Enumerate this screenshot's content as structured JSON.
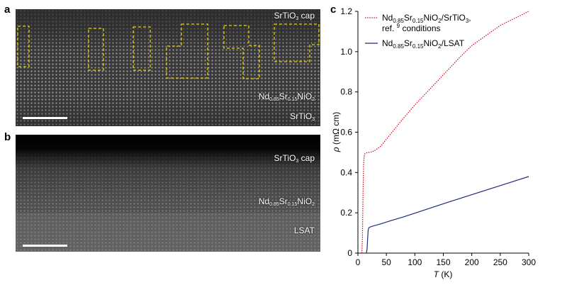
{
  "panels": {
    "a": {
      "letter": "a",
      "cap_label": {
        "main": "SrTiO",
        "sub": "3",
        "tail": " cap"
      },
      "film_label": {
        "p1": "Nd",
        "s1": "0.85",
        "p2": "Sr",
        "s2": "0.15",
        "p3": "NiO",
        "s3": "2"
      },
      "substrate_label": {
        "main": "SrTiO",
        "sub": "3"
      }
    },
    "b": {
      "letter": "b",
      "cap_label": {
        "main": "SrTiO",
        "sub": "3",
        "tail": " cap"
      },
      "film_label": {
        "p1": "Nd",
        "s1": "0.85",
        "p2": "Sr",
        "s2": "0.15",
        "p3": "NiO",
        "s3": "2"
      },
      "substrate_label": {
        "main": "LSAT"
      }
    },
    "c": {
      "letter": "c"
    }
  },
  "colors": {
    "red_series": "#d0021b",
    "blue_series": "#1f2a7a",
    "highlight_box": "#e6d200"
  },
  "chart_data": {
    "type": "line",
    "xlabel": {
      "symbol": "T",
      "unit": " (K)"
    },
    "ylabel": {
      "symbol": "ρ",
      "unit": " (mΩ cm)"
    },
    "xlim": [
      0,
      300
    ],
    "ylim": [
      0,
      1.2
    ],
    "xticks": [
      0,
      50,
      100,
      150,
      200,
      250,
      300
    ],
    "yticks": [
      0,
      0.2,
      0.4,
      0.6,
      0.8,
      1.0,
      1.2
    ],
    "ytick_labels": [
      "0",
      "0.2",
      "0.4",
      "0.6",
      "0.8",
      "1.0",
      "1.2"
    ],
    "legend_position": "top-left",
    "series": [
      {
        "name": "Nd0.85Sr0.15NiO2/SrTiO3, ref. 9 conditions",
        "legend": {
          "p1": "Nd",
          "s1": "0.85",
          "p2": "Sr",
          "s2": "0.15",
          "p3": "NiO",
          "s3": "2",
          "p4": "/SrTiO",
          "s4": "3",
          "p5": ",",
          "line2a": "ref. ",
          "sup": "9",
          "line2b": " conditions"
        },
        "style": "dotted",
        "color_key": "red_series",
        "x": [
          7,
          8,
          9,
          10,
          11,
          12,
          14,
          16,
          20,
          25,
          30,
          40,
          50,
          60,
          80,
          100,
          120,
          150,
          180,
          200,
          250,
          300
        ],
        "y": [
          0,
          0.08,
          0.3,
          0.44,
          0.48,
          0.492,
          0.497,
          0.498,
          0.5,
          0.503,
          0.51,
          0.53,
          0.565,
          0.6,
          0.67,
          0.735,
          0.795,
          0.885,
          0.975,
          1.03,
          1.13,
          1.2
        ]
      },
      {
        "name": "Nd0.85Sr0.15NiO2/LSAT",
        "legend": {
          "p1": "Nd",
          "s1": "0.85",
          "p2": "Sr",
          "s2": "0.15",
          "p3": "NiO",
          "s3": "2",
          "p4": "/LSAT"
        },
        "style": "solid",
        "color_key": "blue_series",
        "x": [
          15,
          16,
          17,
          18,
          19,
          20,
          22,
          25,
          30,
          40,
          60,
          80,
          100,
          150,
          200,
          250,
          300
        ],
        "y": [
          0,
          0.02,
          0.07,
          0.115,
          0.125,
          0.128,
          0.13,
          0.133,
          0.137,
          0.145,
          0.163,
          0.18,
          0.198,
          0.245,
          0.29,
          0.335,
          0.38
        ]
      }
    ]
  }
}
